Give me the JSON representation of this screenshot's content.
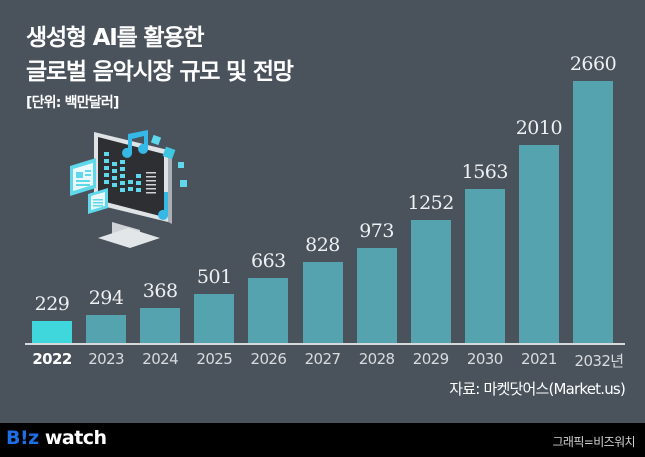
{
  "header": {
    "title_line1": "생성형 AI를 활용한",
    "title_line2": "글로벌 음악시장 규모 및 전망",
    "unit": "[단위: 백만달러]"
  },
  "chart_data": {
    "type": "bar",
    "title": "생성형 AI를 활용한 글로벌 음악시장 규모 및 전망",
    "subtitle": "[단위: 백만달러]",
    "xlabel": "",
    "ylabel": "백만달러",
    "categories": [
      "2022",
      "2023",
      "2024",
      "2025",
      "2026",
      "2027",
      "2028",
      "2029",
      "2030",
      "2021",
      "2032년"
    ],
    "values": [
      229,
      294,
      368,
      501,
      663,
      828,
      973,
      1252,
      1563,
      2010,
      2660
    ],
    "ylim": [
      0,
      2660
    ],
    "grid": false,
    "legend": "none",
    "highlight_index": 0,
    "colors": {
      "bar": "#54a3ae",
      "highlight": "#3fd6dc",
      "background": "#4a525c"
    },
    "annotations": [
      "자료: 마켓닷어스(Market.us)"
    ]
  },
  "labels": {
    "values": [
      "229",
      "294",
      "368",
      "501",
      "663",
      "828",
      "973",
      "1252",
      "1563",
      "2010",
      "2660"
    ],
    "years": [
      "2022",
      "2023",
      "2024",
      "2025",
      "2026",
      "2027",
      "2028",
      "2029",
      "2030",
      "2021",
      "2032년"
    ]
  },
  "source": "자료: 마켓닷어스(Market.us)",
  "footer": {
    "logo_part1": "B!z",
    "logo_part2": " watch",
    "credit": "그래픽=비즈워치"
  },
  "illustration": {
    "icon": "music-monitor-icon"
  }
}
